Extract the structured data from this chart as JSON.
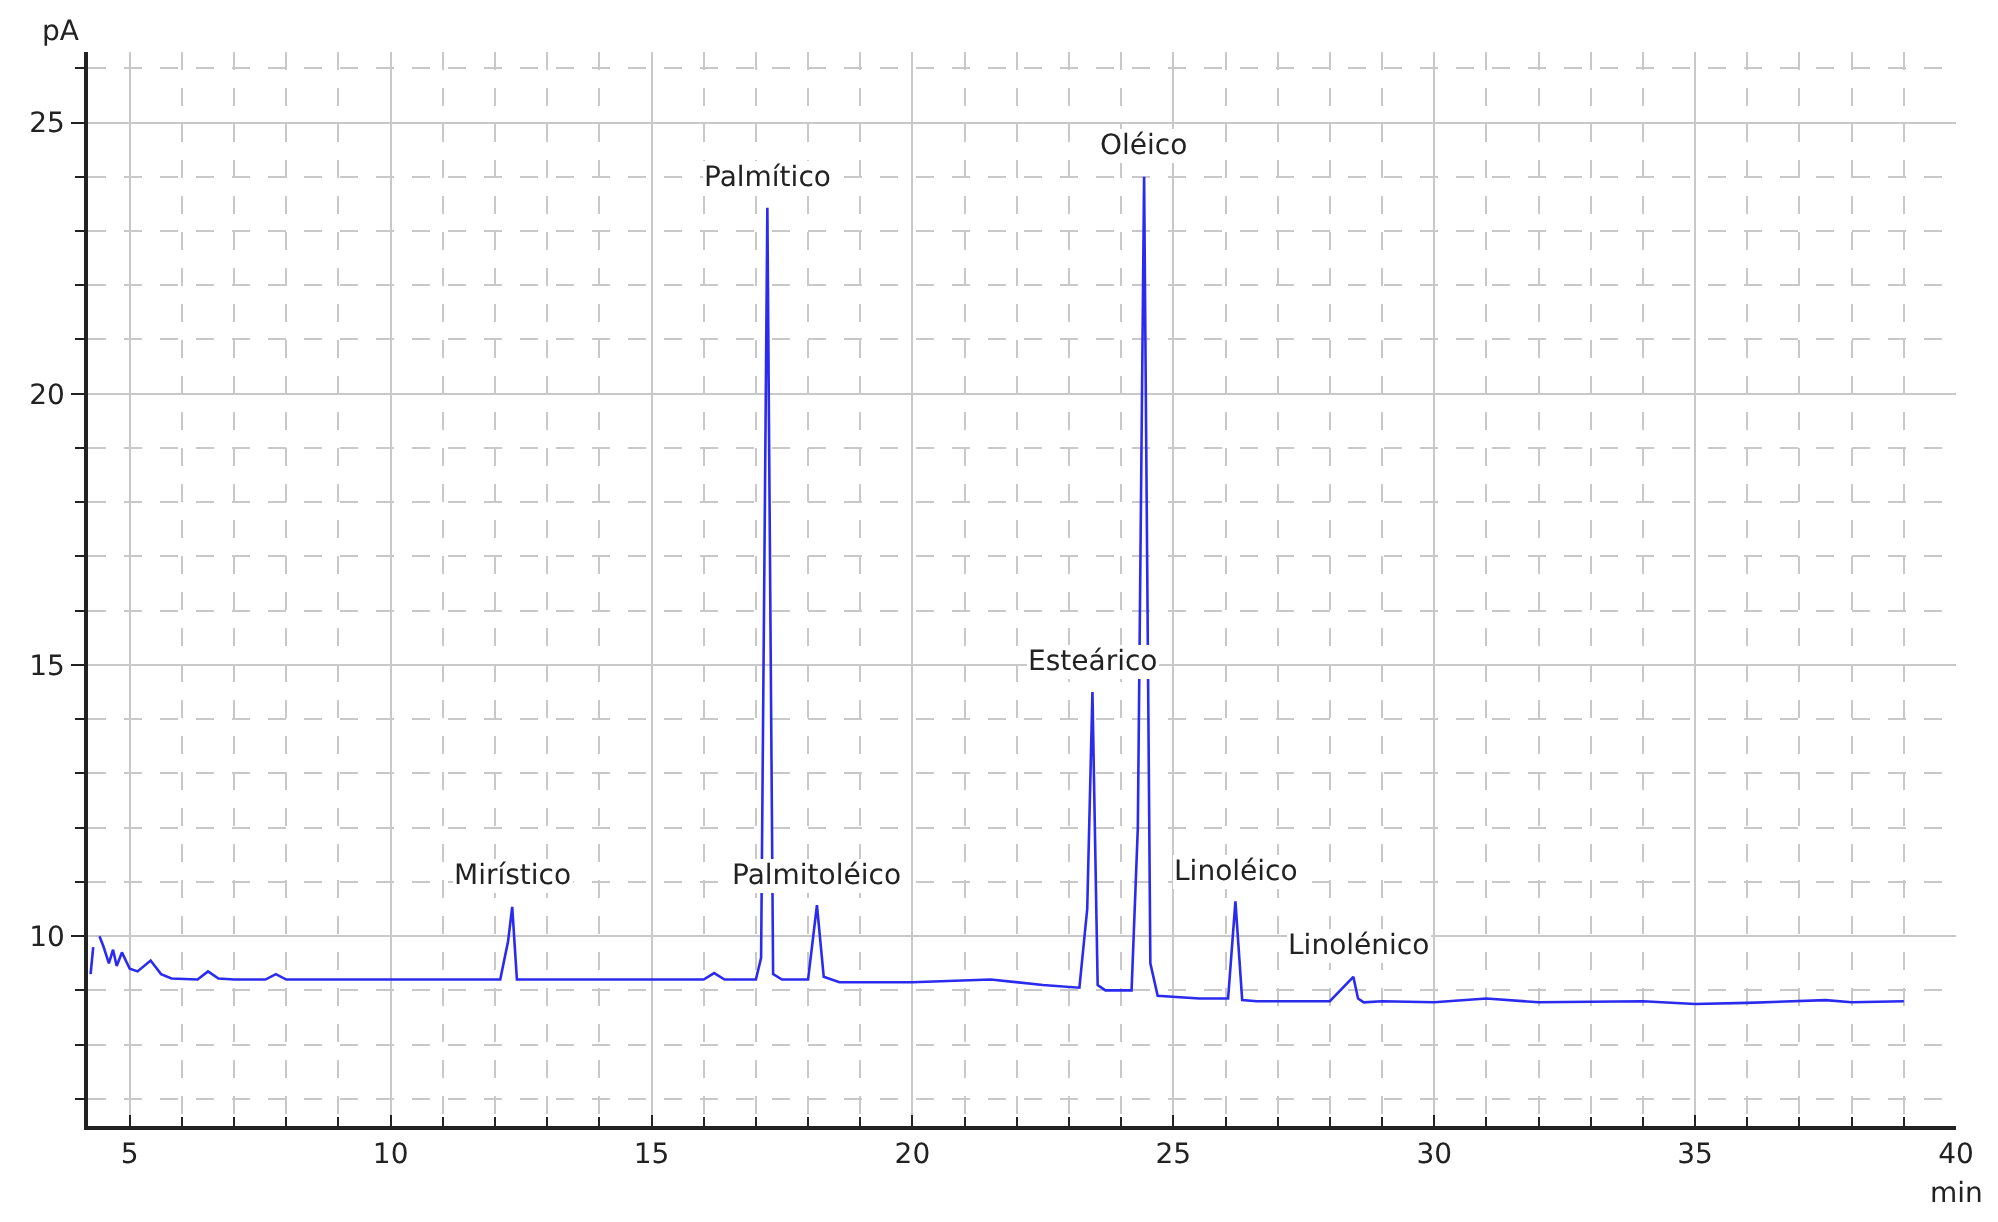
{
  "chart_data": {
    "type": "line",
    "xlabel": "min",
    "ylabel": "pA",
    "xlim": [
      4.2,
      40
    ],
    "ylim": [
      6.5,
      26.3
    ],
    "xticks": [
      5,
      10,
      15,
      20,
      25,
      30,
      35,
      40
    ],
    "yticks": [
      10,
      15,
      20,
      25
    ],
    "grid": true,
    "marker": "none",
    "line_style": "solid",
    "series": [
      {
        "color": "#2b2bf0",
        "x": [
          4.25,
          4.3,
          4.33,
          4.38,
          4.42,
          4.5,
          4.6,
          4.68,
          4.75,
          4.85,
          5.0,
          5.15,
          5.4,
          5.6,
          5.8,
          6.3,
          6.5,
          6.7,
          7.0,
          7.6,
          7.8,
          8.0,
          9.0,
          10.0,
          11.0,
          12.1,
          12.25,
          12.33,
          12.42,
          12.6,
          14.0,
          16.0,
          16.2,
          16.4,
          17.0,
          17.1,
          17.22,
          17.33,
          17.5,
          18.0,
          18.17,
          18.3,
          18.6,
          20.0,
          21.5,
          22.5,
          23.2,
          23.35,
          23.45,
          23.55,
          23.7,
          24.2,
          24.32,
          24.44,
          24.56,
          24.7,
          25.5,
          26.05,
          26.19,
          26.32,
          26.6,
          28.0,
          28.45,
          28.54,
          28.65,
          29.0,
          30.0,
          31.0,
          32.0,
          34.0,
          35.0,
          36.0,
          37.5,
          38.0,
          39.0
        ],
        "values": [
          9.3,
          9.8,
          null,
          null,
          10.0,
          9.8,
          9.5,
          9.75,
          9.45,
          9.7,
          9.4,
          9.35,
          9.55,
          9.3,
          9.22,
          9.2,
          9.35,
          9.22,
          9.2,
          9.2,
          9.3,
          9.2,
          9.2,
          9.2,
          9.2,
          9.2,
          9.9,
          10.54,
          9.2,
          9.2,
          9.2,
          9.2,
          9.32,
          9.2,
          9.2,
          9.6,
          23.43,
          9.3,
          9.2,
          9.2,
          10.57,
          9.25,
          9.15,
          9.15,
          9.2,
          9.1,
          9.05,
          10.5,
          14.5,
          9.1,
          9.0,
          9.0,
          12.0,
          24.0,
          9.5,
          8.9,
          8.85,
          8.85,
          10.64,
          8.82,
          8.8,
          8.8,
          9.25,
          8.85,
          8.78,
          8.8,
          8.78,
          8.85,
          8.78,
          8.8,
          8.75,
          8.77,
          8.82,
          8.78,
          8.8
        ]
      }
    ],
    "annotations": [
      {
        "text": "Mirístico",
        "x": 12.33,
        "y": 10.54
      },
      {
        "text": "Palmítico",
        "x": 17.22,
        "y": 23.43
      },
      {
        "text": "Palmitoléico",
        "x": 18.17,
        "y": 10.57
      },
      {
        "text": "Esteárico",
        "x": 23.45,
        "y": 14.5
      },
      {
        "text": "Oléico",
        "x": 24.44,
        "y": 24.0
      },
      {
        "text": "Linoléico",
        "x": 26.19,
        "y": 10.64
      },
      {
        "text": "Linolénico",
        "x": 28.54,
        "y": 9.25
      }
    ]
  }
}
